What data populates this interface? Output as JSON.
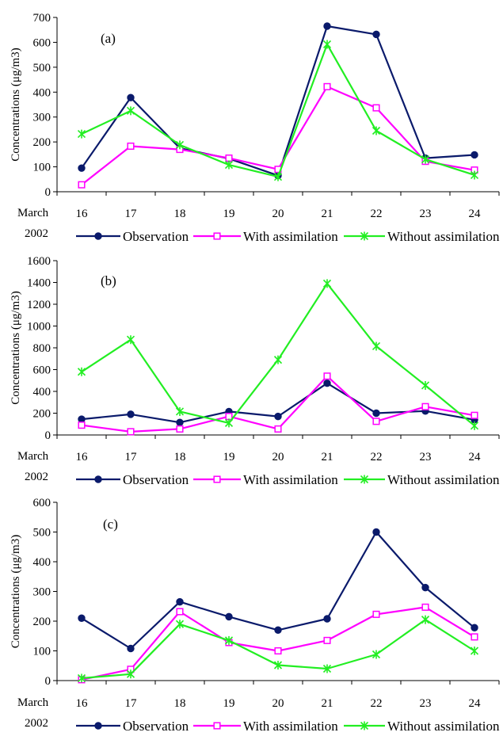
{
  "chart_data": [
    {
      "type": "line",
      "panel_label": "(a)",
      "ylabel": "Concentrations (μg/m3)",
      "x_prefix": [
        "March",
        "2002"
      ],
      "categories": [
        "16",
        "17",
        "18",
        "19",
        "20",
        "21",
        "22",
        "23",
        "24"
      ],
      "ylim": [
        0,
        700
      ],
      "yticks": [
        0,
        100,
        200,
        300,
        400,
        500,
        600,
        700
      ],
      "series": [
        {
          "name": "Observation",
          "values": [
            95,
            378,
            175,
            133,
            65,
            665,
            632,
            135,
            148
          ]
        },
        {
          "name": "With assimilation",
          "values": [
            28,
            183,
            170,
            135,
            90,
            422,
            337,
            122,
            87
          ]
        },
        {
          "name": "Without assimilation",
          "values": [
            232,
            325,
            188,
            108,
            60,
            592,
            245,
            130,
            67
          ]
        }
      ]
    },
    {
      "type": "line",
      "panel_label": "(b)",
      "ylabel": "Concentrations (μg/m3)",
      "x_prefix": [
        "March",
        "2002"
      ],
      "categories": [
        "16",
        "17",
        "18",
        "19",
        "20",
        "21",
        "22",
        "23",
        "24"
      ],
      "ylim": [
        0,
        1600
      ],
      "yticks": [
        0,
        200,
        400,
        600,
        800,
        1000,
        1200,
        1400,
        1600
      ],
      "series": [
        {
          "name": "Observation",
          "values": [
            145,
            190,
            115,
            215,
            170,
            475,
            200,
            220,
            140
          ]
        },
        {
          "name": "With assimilation",
          "values": [
            90,
            30,
            55,
            170,
            55,
            540,
            125,
            260,
            180
          ]
        },
        {
          "name": "Without assimilation",
          "values": [
            580,
            875,
            215,
            110,
            690,
            1390,
            815,
            455,
            85
          ]
        }
      ]
    },
    {
      "type": "line",
      "panel_label": "(c)",
      "ylabel": "Concentrations (μg/m3)",
      "x_prefix": [
        "March",
        "2002"
      ],
      "categories": [
        "16",
        "17",
        "18",
        "19",
        "20",
        "21",
        "22",
        "23",
        "24"
      ],
      "ylim": [
        0,
        600
      ],
      "yticks": [
        0,
        100,
        200,
        300,
        400,
        500,
        600
      ],
      "series": [
        {
          "name": "Observation",
          "values": [
            210,
            108,
            265,
            215,
            170,
            208,
            500,
            313,
            178
          ]
        },
        {
          "name": "With assimilation",
          "values": [
            3,
            38,
            232,
            128,
            100,
            135,
            223,
            247,
            147
          ]
        },
        {
          "name": "Without assimilation",
          "values": [
            8,
            22,
            190,
            135,
            52,
            40,
            88,
            205,
            100
          ]
        }
      ]
    }
  ],
  "colors": {
    "observation": "#0a1a6b",
    "with_assimilation": "#ff00ff",
    "without_assimilation": "#22ee22",
    "axis": "#000000"
  },
  "markers": {
    "observation": "filled-circle",
    "with_assimilation": "open-square",
    "without_assimilation": "asterisk"
  }
}
